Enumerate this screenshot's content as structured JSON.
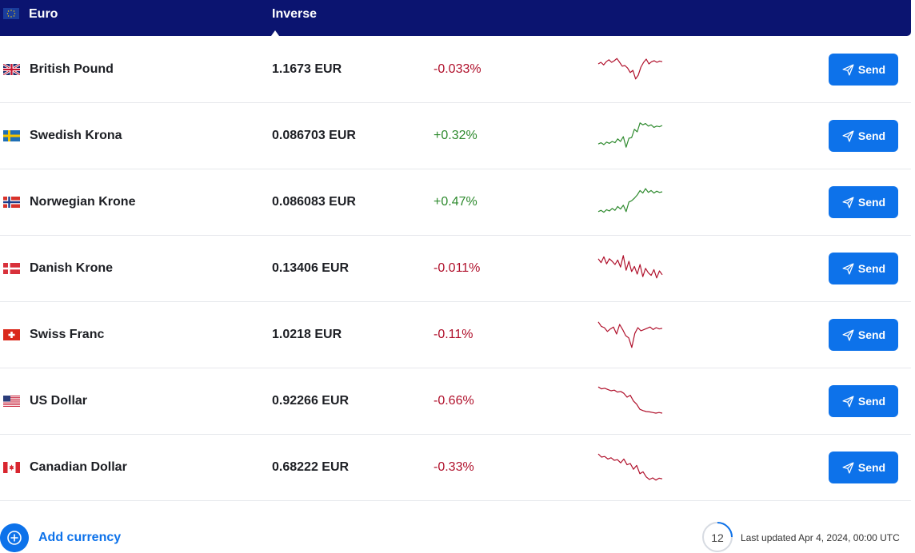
{
  "header": {
    "base_currency": "Euro",
    "base_flag": "eu-flag",
    "inverse_label": "Inverse"
  },
  "rows": [
    {
      "name": "British Pound",
      "flag": "gb-flag",
      "rate": "1.1673 EUR",
      "change": "-0.033%",
      "direction": "down",
      "send_label": "Send",
      "spark": [
        0.35,
        0.3,
        0.38,
        0.28,
        0.22,
        0.3,
        0.25,
        0.18,
        0.3,
        0.42,
        0.4,
        0.48,
        0.62,
        0.55,
        0.82,
        0.7,
        0.45,
        0.3,
        0.2,
        0.35,
        0.28,
        0.25,
        0.3,
        0.26,
        0.28
      ]
    },
    {
      "name": "Swedish Krona",
      "flag": "se-flag",
      "rate": "0.086703 EUR",
      "change": "+0.32%",
      "direction": "up",
      "send_label": "Send",
      "spark": [
        0.78,
        0.74,
        0.8,
        0.72,
        0.76,
        0.7,
        0.74,
        0.62,
        0.7,
        0.55,
        0.88,
        0.6,
        0.58,
        0.32,
        0.4,
        0.12,
        0.18,
        0.14,
        0.22,
        0.18,
        0.26,
        0.22,
        0.24,
        0.2
      ]
    },
    {
      "name": "Norwegian Krone",
      "flag": "no-flag",
      "rate": "0.086083 EUR",
      "change": "+0.47%",
      "direction": "up",
      "send_label": "Send",
      "spark": [
        0.82,
        0.78,
        0.84,
        0.76,
        0.8,
        0.72,
        0.78,
        0.66,
        0.74,
        0.62,
        0.82,
        0.52,
        0.48,
        0.4,
        0.3,
        0.16,
        0.24,
        0.1,
        0.22,
        0.16,
        0.24,
        0.18,
        0.22,
        0.2
      ]
    },
    {
      "name": "Danish Krone",
      "flag": "dk-flag",
      "rate": "0.13406 EUR",
      "change": "-0.011%",
      "direction": "down",
      "send_label": "Send",
      "spark": [
        0.22,
        0.34,
        0.16,
        0.38,
        0.22,
        0.3,
        0.4,
        0.26,
        0.48,
        0.12,
        0.58,
        0.3,
        0.62,
        0.46,
        0.7,
        0.4,
        0.78,
        0.52,
        0.66,
        0.74,
        0.56,
        0.82,
        0.6,
        0.72
      ]
    },
    {
      "name": "Swiss Franc",
      "flag": "ch-flag",
      "rate": "1.0218 EUR",
      "change": "-0.11%",
      "direction": "down",
      "send_label": "Send",
      "spark": [
        0.12,
        0.26,
        0.3,
        0.42,
        0.34,
        0.28,
        0.5,
        0.2,
        0.36,
        0.55,
        0.62,
        0.92,
        0.48,
        0.3,
        0.4,
        0.36,
        0.32,
        0.28,
        0.36,
        0.3,
        0.34,
        0.32
      ]
    },
    {
      "name": "US Dollar",
      "flag": "us-flag",
      "rate": "0.92266 EUR",
      "change": "-0.66%",
      "direction": "down",
      "send_label": "Send",
      "spark": [
        0.08,
        0.14,
        0.12,
        0.16,
        0.2,
        0.18,
        0.24,
        0.22,
        0.28,
        0.4,
        0.34,
        0.52,
        0.62,
        0.78,
        0.82,
        0.85,
        0.86,
        0.88,
        0.9,
        0.88,
        0.9
      ]
    },
    {
      "name": "Canadian Dollar",
      "flag": "ca-flag",
      "rate": "0.68222 EUR",
      "change": "-0.33%",
      "direction": "down",
      "send_label": "Send",
      "spark": [
        0.1,
        0.2,
        0.18,
        0.26,
        0.22,
        0.3,
        0.28,
        0.38,
        0.26,
        0.44,
        0.4,
        0.58,
        0.46,
        0.72,
        0.66,
        0.82,
        0.9,
        0.85,
        0.92,
        0.86,
        0.88
      ]
    }
  ],
  "footer": {
    "add_currency_label": "Add currency",
    "refresh_countdown": "12",
    "last_updated": "Last updated Apr 4, 2024, 00:00 UTC"
  },
  "colors": {
    "negative": "#b0102b",
    "positive": "#2e8a2e",
    "accent": "#0d72ea",
    "header_bg": "#0b1470"
  }
}
